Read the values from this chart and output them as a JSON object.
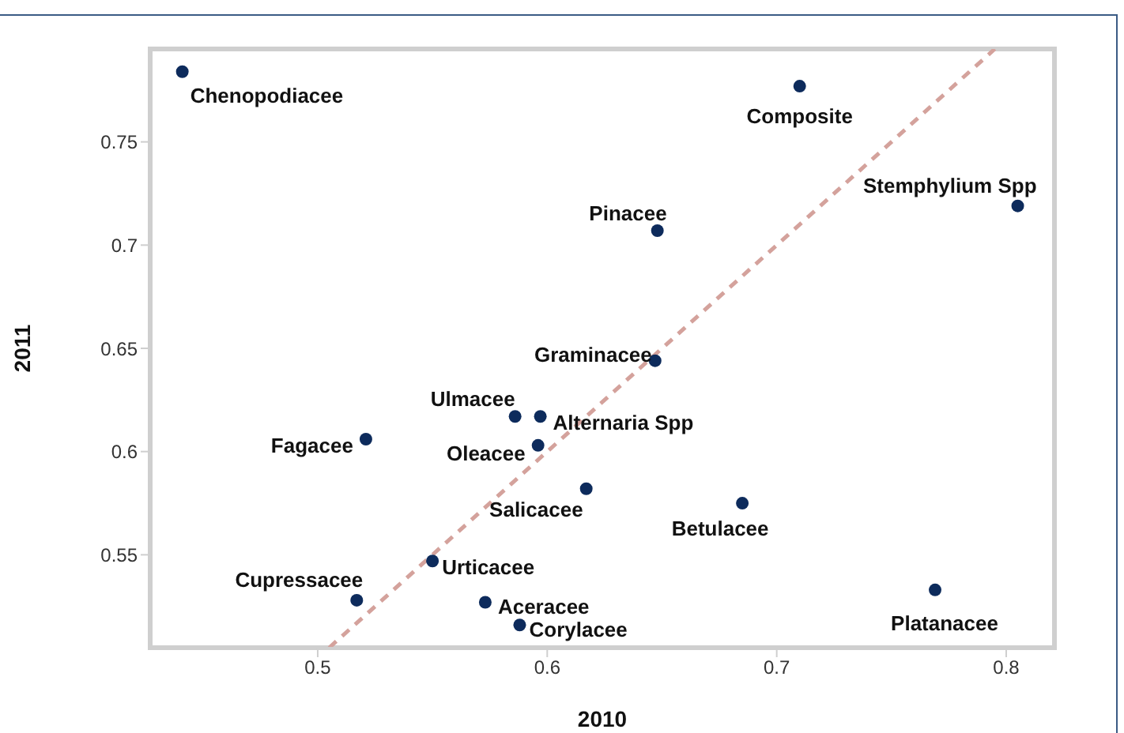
{
  "chart_data": {
    "type": "scatter",
    "xlabel": "2010",
    "ylabel": "2011",
    "xlim": [
      0.427,
      0.821
    ],
    "ylim": [
      0.505,
      0.795
    ],
    "xticks": [
      0.5,
      0.6,
      0.7,
      0.8
    ],
    "yticks": [
      0.55,
      0.6,
      0.65,
      0.7,
      0.75
    ],
    "grid": false,
    "legend": false,
    "marker": "circle",
    "series": [
      {
        "color": "#0d2b5c",
        "x": [
          0.441,
          0.71,
          0.648,
          0.805,
          0.647,
          0.586,
          0.597,
          0.521,
          0.596,
          0.617,
          0.685,
          0.55,
          0.517,
          0.573,
          0.588,
          0.769
        ],
        "values": [
          0.784,
          0.777,
          0.707,
          0.719,
          0.644,
          0.617,
          0.617,
          0.606,
          0.603,
          0.582,
          0.575,
          0.547,
          0.528,
          0.527,
          0.516,
          0.533
        ]
      },
      {
        "type": "line",
        "color": "#d4a29c",
        "line_style": "dashed",
        "marker": "none",
        "x": [
          0.505,
          0.795
        ],
        "values": [
          0.505,
          0.795
        ]
      }
    ],
    "annotations": [
      {
        "text": "Chenopodiacee",
        "x": 0.441,
        "y": 0.784
      },
      {
        "text": "Composite",
        "x": 0.71,
        "y": 0.777
      },
      {
        "text": "Pinacee",
        "x": 0.648,
        "y": 0.707
      },
      {
        "text": "Stemphylium Spp",
        "x": 0.805,
        "y": 0.719
      },
      {
        "text": "Graminacee",
        "x": 0.647,
        "y": 0.644
      },
      {
        "text": "Ulmacee",
        "x": 0.586,
        "y": 0.617
      },
      {
        "text": "Alternaria Spp",
        "x": 0.597,
        "y": 0.617
      },
      {
        "text": "Fagacee",
        "x": 0.521,
        "y": 0.606
      },
      {
        "text": "Oleacee",
        "x": 0.596,
        "y": 0.603
      },
      {
        "text": "Salicacee",
        "x": 0.617,
        "y": 0.582
      },
      {
        "text": "Betulacee",
        "x": 0.685,
        "y": 0.575
      },
      {
        "text": "Urticacee",
        "x": 0.55,
        "y": 0.547
      },
      {
        "text": "Cupressacee",
        "x": 0.517,
        "y": 0.528
      },
      {
        "text": "Aceracee",
        "x": 0.573,
        "y": 0.527
      },
      {
        "text": "Corylacee",
        "x": 0.588,
        "y": 0.516
      },
      {
        "text": "Platanacee",
        "x": 0.769,
        "y": 0.533
      }
    ]
  }
}
